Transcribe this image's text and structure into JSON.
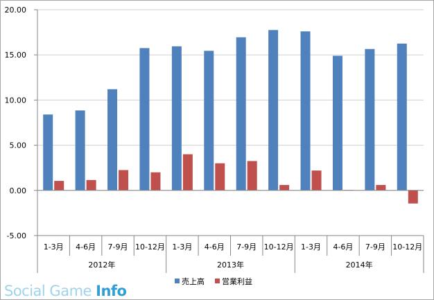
{
  "chart_data": {
    "type": "bar",
    "categories": [
      "1-3月",
      "4-6月",
      "7-9月",
      "10-12月",
      "1-3月",
      "4-6月",
      "7-9月",
      "10-12月",
      "1-3月",
      "4-6月",
      "7-9月",
      "10-12月"
    ],
    "groups": [
      {
        "label": "2012年",
        "span": [
          0,
          3
        ]
      },
      {
        "label": "2013年",
        "span": [
          4,
          7
        ]
      },
      {
        "label": "2014年",
        "span": [
          8,
          11
        ]
      }
    ],
    "series": [
      {
        "name": "売上高",
        "color": "#4f81bd",
        "values": [
          8.4,
          8.85,
          11.2,
          15.75,
          15.95,
          15.45,
          16.95,
          17.75,
          17.6,
          14.9,
          15.65,
          16.25
        ]
      },
      {
        "name": "営業利益",
        "color": "#c0504d",
        "values": [
          1.05,
          1.15,
          2.25,
          2.0,
          4.0,
          3.0,
          3.25,
          0.6,
          2.2,
          0.05,
          0.6,
          -1.45
        ]
      }
    ],
    "y_ticks": [
      "20.00",
      "15.00",
      "10.00",
      "5.00",
      "0.00",
      "-5.00"
    ],
    "ylim": [
      -5,
      20
    ],
    "grid": true,
    "legend_position": "bottom"
  },
  "watermark": {
    "light": "Social Game",
    "bold": "Info"
  }
}
